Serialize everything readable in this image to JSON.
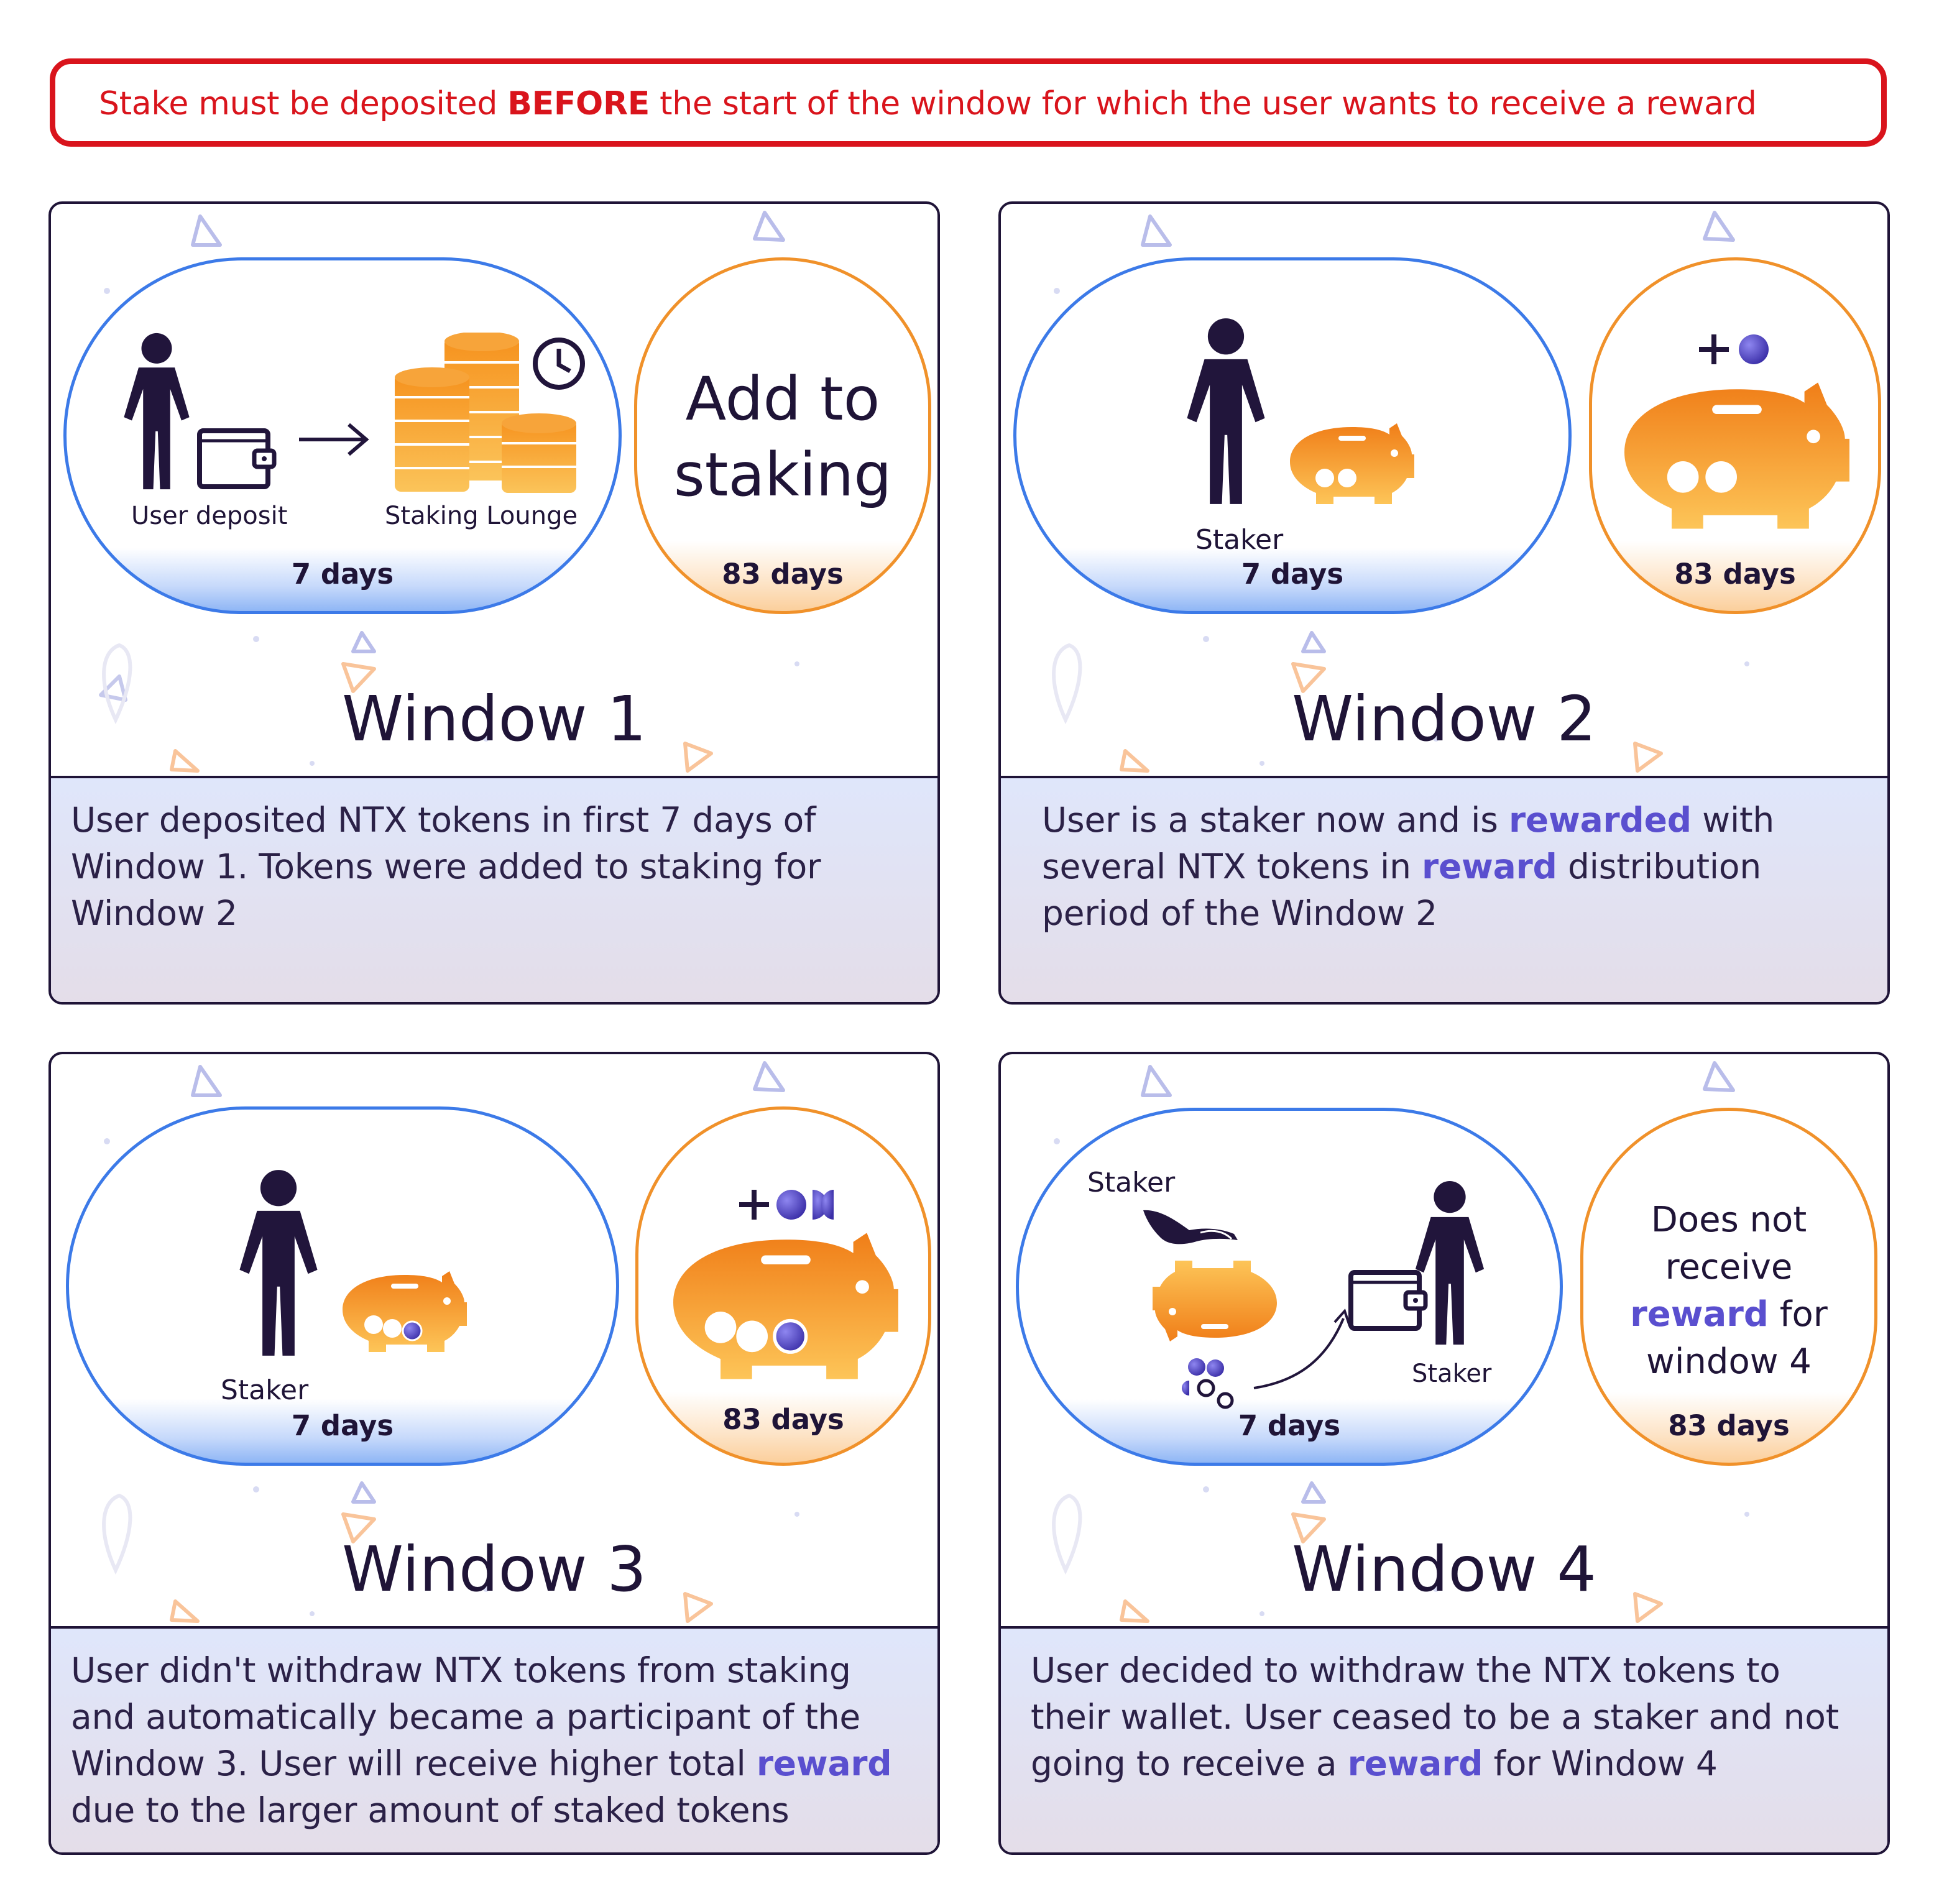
{
  "banner": {
    "before": "Stake must be deposited ",
    "bold": "BEFORE",
    "after": " the start of the window for which the user wants to receive a reward"
  },
  "cards": [
    {
      "title": "Window 1",
      "pill_days": "7 days",
      "circle_days": "83 days",
      "label_user_deposit": "User deposit",
      "label_staking_lounge": "Staking Lounge",
      "circle_text_1": "Add to",
      "circle_text_2": "staking",
      "description": [
        "User deposited NTX tokens in first 7 days of",
        "Window 1. Tokens were added to staking for",
        "Window 2"
      ]
    },
    {
      "title": "Window 2",
      "pill_days": "7 days",
      "circle_days": "83 days",
      "label_staker": "Staker",
      "description": {
        "l1a": "User is a staker now and is ",
        "l1b": "rewarded",
        "l1c": " with",
        "l2a": "several NTX tokens in ",
        "l2b": "reward",
        "l2c": " distribution",
        "l3": "period of the Window 2"
      }
    },
    {
      "title": "Window 3",
      "pill_days": "7 days",
      "circle_days": "83 days",
      "label_staker": "Staker",
      "description": {
        "l1": "User didn't withdraw NTX tokens from staking",
        "l2": "and automatically became a participant of the",
        "l3a": "Window 3. User will receive higher total ",
        "l3b": "reward",
        "l4": "due to the larger amount of staked tokens"
      }
    },
    {
      "title": "Window 4",
      "pill_days": "7 days",
      "circle_days": "83 days",
      "label_staker_left": "Staker",
      "label_staker_right": "Staker",
      "circle_text": {
        "l1": "Does not",
        "l2": "receive",
        "l3a": "reward",
        "l3b": " for",
        "l4": "window 4"
      },
      "description": {
        "l1": "User decided to withdraw the NTX tokens to",
        "l2": "their wallet. User ceased to be a staker and not",
        "l3a": "going to receive a ",
        "l3b": "reward",
        "l3c": " for Window 4"
      }
    }
  ],
  "colors": {
    "banner_red": "#d9141c",
    "dark": "#1f1437",
    "pill_blue": "#3c7ae8",
    "circle_orange": "#f0912a",
    "token_purple": "#5a4fcf",
    "highlight": "#5a4fcf"
  },
  "icons": [
    "person-icon",
    "wallet-icon",
    "arrow-right-icon",
    "coin-stack-icon",
    "clock-icon",
    "piggy-bank-icon",
    "token-icon",
    "hand-icon",
    "curved-arrow-icon"
  ]
}
